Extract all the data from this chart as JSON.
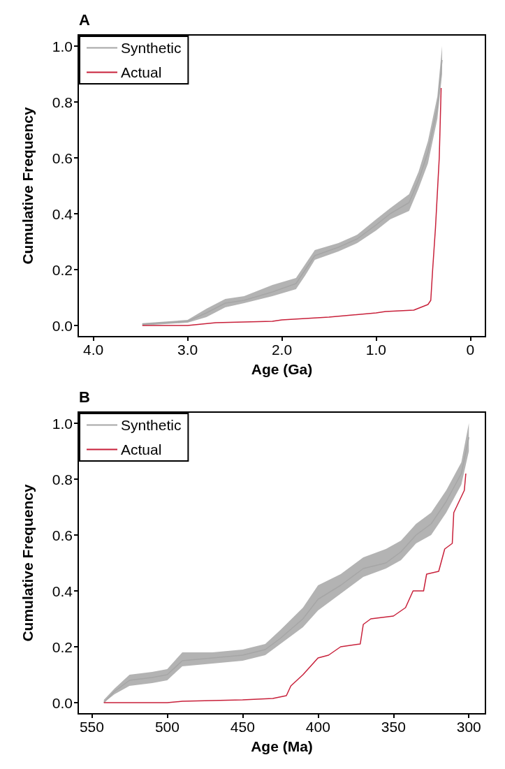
{
  "chart_data": [
    {
      "type": "line",
      "title": "A",
      "xlabel": "Age (Ga)",
      "ylabel": "Cumulative Frequency",
      "xlim": [
        4.16,
        -0.16
      ],
      "xticks": [
        {
          "value": 4,
          "label": "4.0"
        },
        {
          "value": 3,
          "label": "3.0"
        },
        {
          "value": 2,
          "label": "2.0"
        },
        {
          "value": 1,
          "label": "1.0"
        },
        0
      ],
      "ylim": [
        -0.04,
        1.04
      ],
      "yticks": [
        {
          "value": 0,
          "label": "0.0"
        },
        {
          "value": 0.2,
          "label": "0.2"
        },
        {
          "value": 0.4,
          "label": "0.4"
        },
        {
          "value": 0.6,
          "label": "0.6"
        },
        {
          "value": 0.8,
          "label": "0.8"
        },
        {
          "value": 1,
          "label": "1.0"
        }
      ],
      "grid": false,
      "legend": "top left",
      "marker": "none",
      "line_style": "solid",
      "series": [
        {
          "name": "Synthetic",
          "color": "#a6a6a6",
          "x": [
            3.48,
            3.0,
            2.8,
            2.6,
            2.4,
            2.1,
            1.85,
            1.75,
            1.65,
            1.4,
            1.2,
            1.0,
            0.85,
            0.65,
            0.55,
            0.45,
            0.35,
            0.3
          ],
          "values": [
            0.005,
            0.015,
            0.045,
            0.08,
            0.09,
            0.12,
            0.15,
            0.2,
            0.25,
            0.28,
            0.31,
            0.36,
            0.4,
            0.44,
            0.52,
            0.62,
            0.78,
            0.95
          ],
          "lower": [
            0,
            0.01,
            0.03,
            0.065,
            0.08,
            0.105,
            0.13,
            0.18,
            0.235,
            0.265,
            0.295,
            0.34,
            0.38,
            0.41,
            0.49,
            0.58,
            0.74,
            0.9
          ],
          "upper": [
            0.008,
            0.02,
            0.06,
            0.095,
            0.105,
            0.145,
            0.17,
            0.22,
            0.27,
            0.295,
            0.325,
            0.38,
            0.42,
            0.47,
            0.55,
            0.66,
            0.82,
            1.0
          ]
        },
        {
          "name": "Actual",
          "color": "#c8203a",
          "x": [
            3.48,
            3.0,
            2.7,
            2.1,
            2.0,
            1.5,
            1.0,
            0.9,
            0.6,
            0.45,
            0.42,
            0.4,
            0.37,
            0.33,
            0.31
          ],
          "values": [
            0,
            0,
            0.01,
            0.015,
            0.02,
            0.03,
            0.045,
            0.05,
            0.055,
            0.075,
            0.09,
            0.2,
            0.35,
            0.6,
            0.85
          ]
        }
      ]
    },
    {
      "type": "line",
      "title": "B",
      "xlabel": "Age (Ma)",
      "ylabel": "Cumulative Frequency",
      "xlim": [
        559,
        289
      ],
      "xticks": [
        550,
        500,
        450,
        400,
        350,
        300
      ],
      "ylim": [
        -0.04,
        1.04
      ],
      "yticks": [
        {
          "value": 0,
          "label": "0.0"
        },
        {
          "value": 0.2,
          "label": "0.2"
        },
        {
          "value": 0.4,
          "label": "0.4"
        },
        {
          "value": 0.6,
          "label": "0.6"
        },
        {
          "value": 0.8,
          "label": "0.8"
        },
        {
          "value": 1,
          "label": "1.0"
        }
      ],
      "grid": false,
      "legend": "top left",
      "marker": "none",
      "line_style": "solid",
      "series": [
        {
          "name": "Synthetic",
          "color": "#a6a6a6",
          "x": [
            542,
            535,
            525,
            510,
            500,
            490,
            470,
            450,
            435,
            425,
            410,
            400,
            385,
            370,
            355,
            345,
            335,
            325,
            315,
            305,
            300
          ],
          "values": [
            0,
            0.04,
            0.08,
            0.09,
            0.1,
            0.15,
            0.16,
            0.17,
            0.19,
            0.23,
            0.3,
            0.37,
            0.42,
            0.48,
            0.5,
            0.54,
            0.6,
            0.64,
            0.72,
            0.82,
            0.95
          ],
          "lower": [
            0,
            0.03,
            0.06,
            0.07,
            0.08,
            0.13,
            0.14,
            0.15,
            0.17,
            0.21,
            0.27,
            0.33,
            0.39,
            0.45,
            0.48,
            0.51,
            0.57,
            0.6,
            0.68,
            0.78,
            0.9
          ],
          "upper": [
            0.01,
            0.05,
            0.1,
            0.11,
            0.12,
            0.18,
            0.18,
            0.19,
            0.21,
            0.26,
            0.34,
            0.42,
            0.46,
            0.52,
            0.55,
            0.58,
            0.64,
            0.68,
            0.76,
            0.86,
            1.0
          ]
        },
        {
          "name": "Actual",
          "color": "#c8203a",
          "x": [
            542,
            500,
            490,
            450,
            430,
            421,
            418,
            410,
            405,
            400,
            393,
            385,
            372,
            370,
            365,
            350,
            342,
            337,
            330,
            328,
            320,
            316,
            311,
            310,
            303,
            302
          ],
          "values": [
            0,
            0,
            0.005,
            0.01,
            0.015,
            0.025,
            0.06,
            0.1,
            0.13,
            0.16,
            0.17,
            0.2,
            0.21,
            0.28,
            0.3,
            0.31,
            0.34,
            0.4,
            0.4,
            0.46,
            0.47,
            0.55,
            0.57,
            0.68,
            0.76,
            0.82
          ]
        }
      ]
    }
  ]
}
